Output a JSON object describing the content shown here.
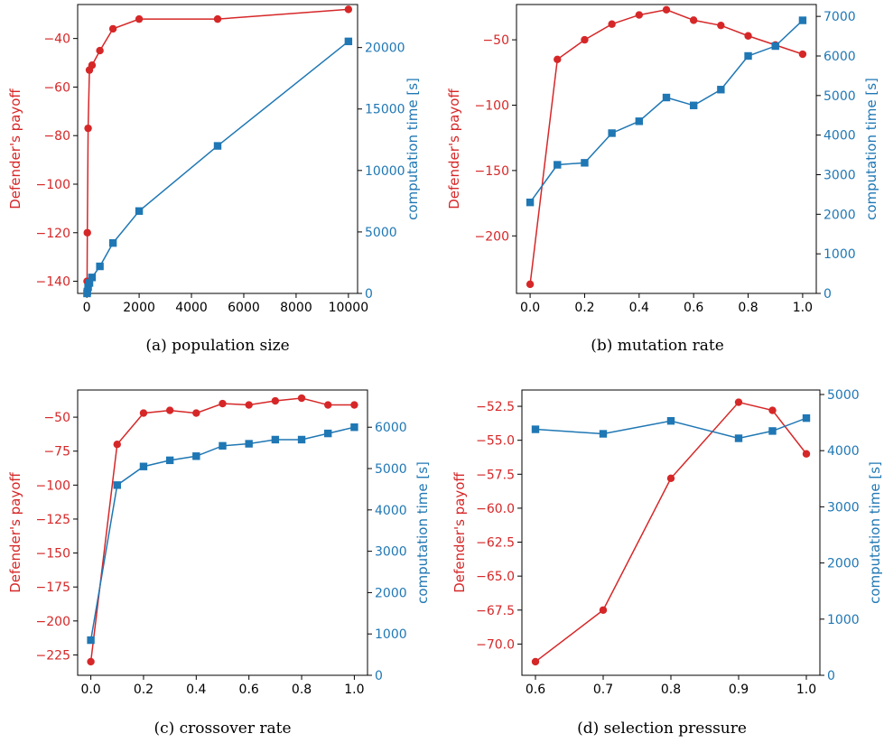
{
  "colors": {
    "left_series": "#d62728",
    "right_series": "#1f77b4",
    "axes": "#000000"
  },
  "chart_data": [
    {
      "type": "line",
      "caption": "(a) population size",
      "xlim": [
        -350,
        10350
      ],
      "xticks": [
        0,
        2000,
        4000,
        6000,
        8000,
        10000
      ],
      "ylim_left": [
        -145,
        -26
      ],
      "yticks_left": [
        -140,
        -120,
        -100,
        -80,
        -60,
        -40
      ],
      "ylim_right": [
        0,
        23500
      ],
      "yticks_right": [
        0,
        5000,
        10000,
        15000,
        20000
      ],
      "ylabel_left": "Defender's payoff",
      "ylabel_right": "computation time [s]",
      "series": [
        {
          "axis": "left",
          "marker": "circle",
          "x": [
            10,
            20,
            50,
            100,
            200,
            500,
            1000,
            2000,
            5000,
            10000
          ],
          "y": [
            -140,
            -120,
            -77,
            -53,
            -51,
            -45,
            -36,
            -32,
            -32,
            -28
          ]
        },
        {
          "axis": "right",
          "marker": "square",
          "x": [
            10,
            20,
            50,
            100,
            200,
            500,
            1000,
            2000,
            5000,
            10000
          ],
          "y": [
            0,
            150,
            500,
            850,
            1300,
            2200,
            4100,
            6700,
            12000,
            20500
          ]
        }
      ]
    },
    {
      "type": "line",
      "caption": "(b) mutation rate",
      "xlim": [
        -0.05,
        1.05
      ],
      "xticks": [
        0.0,
        0.2,
        0.4,
        0.6,
        0.8,
        1.0
      ],
      "ylim_left": [
        -244,
        -23
      ],
      "yticks_left": [
        -200,
        -150,
        -100,
        -50
      ],
      "ylim_right": [
        0,
        7300
      ],
      "yticks_right": [
        0,
        1000,
        2000,
        3000,
        4000,
        5000,
        6000,
        7000
      ],
      "ylabel_left": "Defender's payoff",
      "ylabel_right": "computation time [s]",
      "series": [
        {
          "axis": "left",
          "marker": "circle",
          "x": [
            0.0,
            0.1,
            0.2,
            0.3,
            0.4,
            0.5,
            0.6,
            0.7,
            0.8,
            0.9,
            1.0
          ],
          "y": [
            -237,
            -65,
            -50,
            -38,
            -31,
            -27,
            -35,
            -39,
            -47,
            -54,
            -61
          ]
        },
        {
          "axis": "right",
          "marker": "square",
          "x": [
            0.0,
            0.1,
            0.2,
            0.3,
            0.4,
            0.5,
            0.6,
            0.7,
            0.8,
            0.9,
            1.0
          ],
          "y": [
            2300,
            3250,
            3300,
            4050,
            4350,
            4950,
            4750,
            5150,
            6000,
            6250,
            6900
          ]
        }
      ]
    },
    {
      "type": "line",
      "caption": "(c) crossover rate",
      "xlim": [
        -0.05,
        1.05
      ],
      "xticks": [
        0.0,
        0.2,
        0.4,
        0.6,
        0.8,
        1.0
      ],
      "ylim_left": [
        -240,
        -30
      ],
      "yticks_left": [
        -225,
        -200,
        -175,
        -150,
        -125,
        -100,
        -75,
        -50
      ],
      "ylim_right": [
        0,
        6900
      ],
      "yticks_right": [
        0,
        1000,
        2000,
        3000,
        4000,
        5000,
        6000
      ],
      "ylabel_left": "Defender's payoff",
      "ylabel_right": "computation time [s]",
      "series": [
        {
          "axis": "left",
          "marker": "circle",
          "x": [
            0.0,
            0.1,
            0.2,
            0.3,
            0.4,
            0.5,
            0.6,
            0.7,
            0.8,
            0.9,
            1.0
          ],
          "y": [
            -230,
            -70,
            -47,
            -45,
            -47,
            -40,
            -41,
            -38,
            -36,
            -41,
            -41
          ]
        },
        {
          "axis": "right",
          "marker": "square",
          "x": [
            0.0,
            0.1,
            0.2,
            0.3,
            0.4,
            0.5,
            0.6,
            0.7,
            0.8,
            0.9,
            1.0
          ],
          "y": [
            850,
            4600,
            5050,
            5200,
            5300,
            5550,
            5600,
            5700,
            5700,
            5850,
            6000
          ]
        }
      ]
    },
    {
      "type": "line",
      "caption": "(d) selection pressure",
      "xlim": [
        0.58,
        1.02
      ],
      "xticks": [
        0.6,
        0.7,
        0.8,
        0.9,
        1.0
      ],
      "xtick_labels": [
        "0.6",
        "0.7",
        "0.8",
        "0.9",
        "1.0"
      ],
      "ylim_left": [
        -72.3,
        -51.3
      ],
      "yticks_left": [
        -70.0,
        -67.5,
        -65.0,
        -62.5,
        -60.0,
        -57.5,
        -55.0,
        -52.5
      ],
      "ytick_labels_left": [
        "−70.0",
        "−67.5",
        "−65.0",
        "−62.5",
        "−60.0",
        "−57.5",
        "−55.0",
        "−52.5"
      ],
      "ylim_right": [
        0,
        5080
      ],
      "yticks_right": [
        0,
        1000,
        2000,
        3000,
        4000,
        5000
      ],
      "ylabel_left": "Defender's payoff",
      "ylabel_right": "computation time [s]",
      "series": [
        {
          "axis": "left",
          "marker": "circle",
          "x": [
            0.6,
            0.7,
            0.8,
            0.9,
            0.95,
            1.0
          ],
          "y": [
            -71.3,
            -67.5,
            -57.8,
            -52.2,
            -52.8,
            -56.0
          ]
        },
        {
          "axis": "right",
          "marker": "square",
          "x": [
            0.6,
            0.7,
            0.8,
            0.9,
            0.95,
            1.0
          ],
          "y": [
            4380,
            4300,
            4530,
            4220,
            4350,
            4580
          ]
        }
      ]
    }
  ]
}
